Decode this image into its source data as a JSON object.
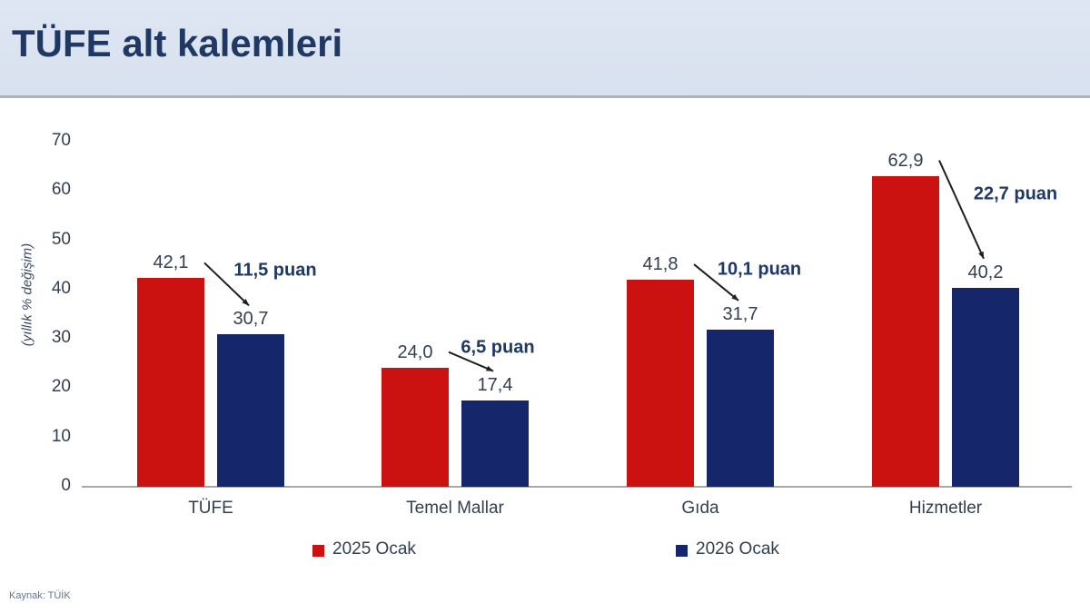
{
  "header": {
    "title": "TÜFE alt kalemleri"
  },
  "source": "Kaynak: TÜİK",
  "colors": {
    "red": "#CC1111",
    "navy": "#15266B",
    "header_bg": "#DBE3F1",
    "title_text": "#1F3864",
    "axis_line": "#A8A8A8",
    "text": "#333F50",
    "arrow": "#1F1F1F"
  },
  "chart_data": {
    "type": "bar",
    "title": "TÜFE alt kalemleri",
    "categories": [
      "TÜFE",
      "Temel Mallar",
      "Gıda",
      "Hizmetler"
    ],
    "series": [
      {
        "name": "2025 Ocak",
        "color_key": "red",
        "values": [
          42.1,
          24.0,
          41.8,
          62.9
        ]
      },
      {
        "name": "2026 Ocak",
        "color_key": "navy",
        "values": [
          30.7,
          17.4,
          31.7,
          40.2
        ]
      }
    ],
    "diff_annotations": [
      "11,5 puan",
      "6,5 puan",
      "10,1 puan",
      "22,7 puan"
    ],
    "xlabel": "",
    "ylabel": "(yıllık % değişim)",
    "yticks": [
      0,
      10,
      20,
      30,
      40,
      50,
      60,
      70
    ],
    "ylim": [
      0,
      70
    ],
    "grid": false,
    "legend_position": "bottom"
  }
}
